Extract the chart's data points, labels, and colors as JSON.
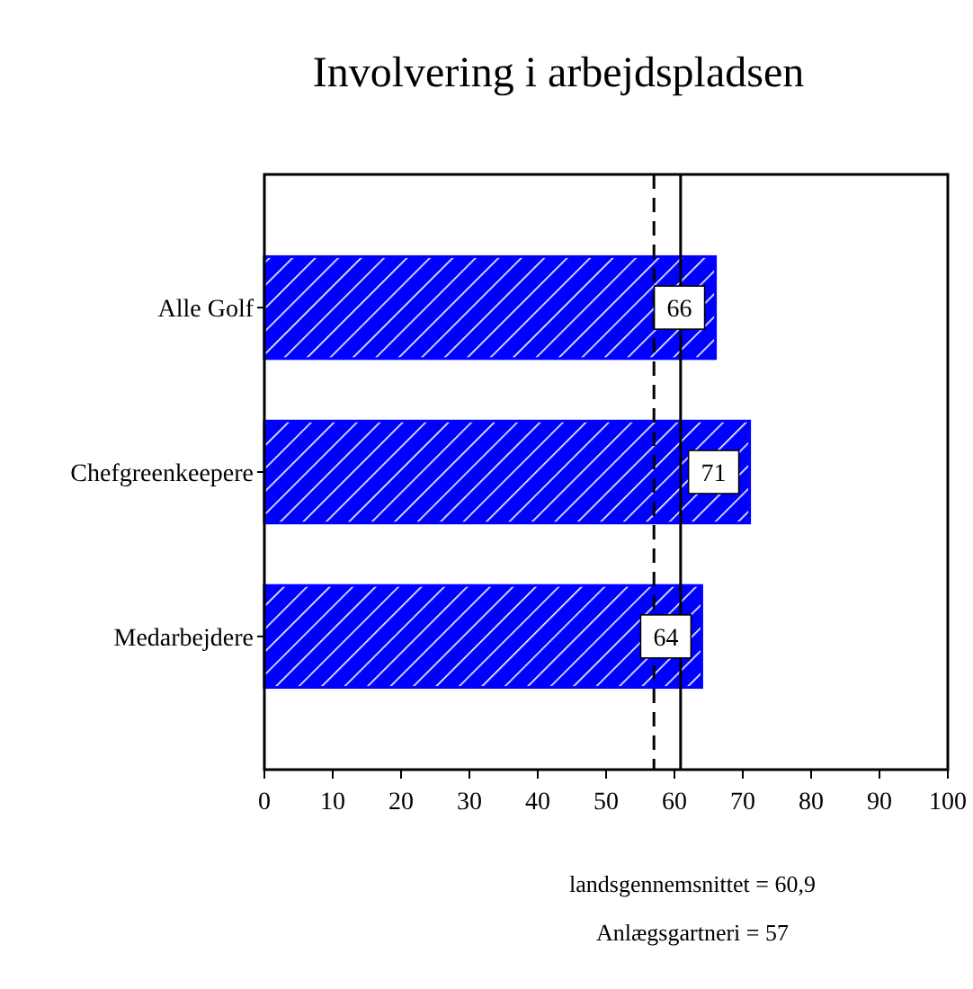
{
  "chart_data": {
    "type": "bar",
    "orientation": "horizontal",
    "title": "Involvering i arbejdspladsen",
    "categories": [
      "Alle Golf",
      "Chefgreenkeepere",
      "Medarbejdere"
    ],
    "values": [
      66,
      71,
      64
    ],
    "color": "#0000ff",
    "data_labels": true,
    "xlim": [
      0,
      100
    ],
    "xticks": [
      0,
      10,
      20,
      30,
      40,
      50,
      60,
      70,
      80,
      90,
      100
    ],
    "grid": false,
    "annotations": [
      "landsgennemsnittet = 60,9",
      "Anlægsgartneri = 57"
    ],
    "ref_lines": [
      {
        "axis": "x",
        "value": 60.9,
        "line_style": "solid",
        "color": "#000000"
      },
      {
        "axis": "x",
        "value": 57,
        "line_style": "dashed",
        "color": "#000000"
      }
    ]
  }
}
